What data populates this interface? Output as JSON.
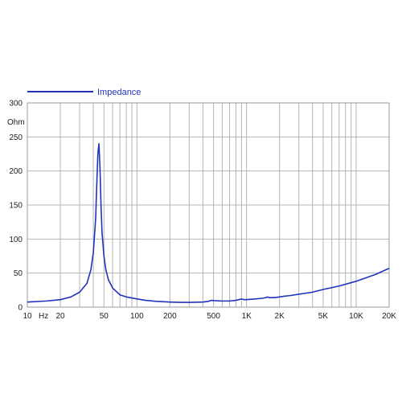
{
  "chart_data": {
    "type": "line",
    "title": "",
    "xlabel": "Hz",
    "ylabel": "Ohm",
    "x_scale": "log",
    "xlim": [
      10,
      20000
    ],
    "ylim": [
      0,
      300
    ],
    "grid": true,
    "legend_position": "top-left",
    "x_tick_labels": [
      {
        "value": 10,
        "label": "10"
      },
      {
        "value": 20,
        "label": "20"
      },
      {
        "value": 50,
        "label": "50"
      },
      {
        "value": 100,
        "label": "100"
      },
      {
        "value": 200,
        "label": "200"
      },
      {
        "value": 500,
        "label": "500"
      },
      {
        "value": 1000,
        "label": "1K"
      },
      {
        "value": 2000,
        "label": "2K"
      },
      {
        "value": 5000,
        "label": "5K"
      },
      {
        "value": 10000,
        "label": "10K"
      },
      {
        "value": 20000,
        "label": "20K"
      }
    ],
    "y_ticks": [
      0,
      50,
      100,
      150,
      200,
      250,
      300
    ],
    "series": [
      {
        "name": "Impedance",
        "color": "#2233bb",
        "x": [
          10,
          15,
          20,
          25,
          30,
          35,
          38,
          40,
          42,
          43,
          44,
          45,
          46,
          47,
          48,
          50,
          52,
          55,
          60,
          70,
          80,
          100,
          120,
          150,
          200,
          250,
          300,
          400,
          450,
          480,
          500,
          600,
          700,
          800,
          850,
          900,
          950,
          1000,
          1200,
          1400,
          1500,
          1550,
          1600,
          1800,
          2000,
          2200,
          2500,
          3000,
          4000,
          5000,
          7000,
          10000,
          15000,
          20000
        ],
        "y": [
          7.5,
          9,
          11,
          15,
          22,
          35,
          55,
          80,
          130,
          180,
          225,
          240,
          205,
          150,
          110,
          75,
          55,
          40,
          28,
          18,
          15,
          12,
          10,
          8.5,
          7.5,
          7,
          7,
          7.5,
          8.5,
          10,
          9.5,
          9,
          9,
          10,
          11,
          12,
          11,
          11,
          12,
          13,
          14,
          15,
          14,
          14,
          15,
          16,
          17,
          19,
          22,
          26,
          31,
          38,
          48,
          57
        ]
      }
    ]
  }
}
